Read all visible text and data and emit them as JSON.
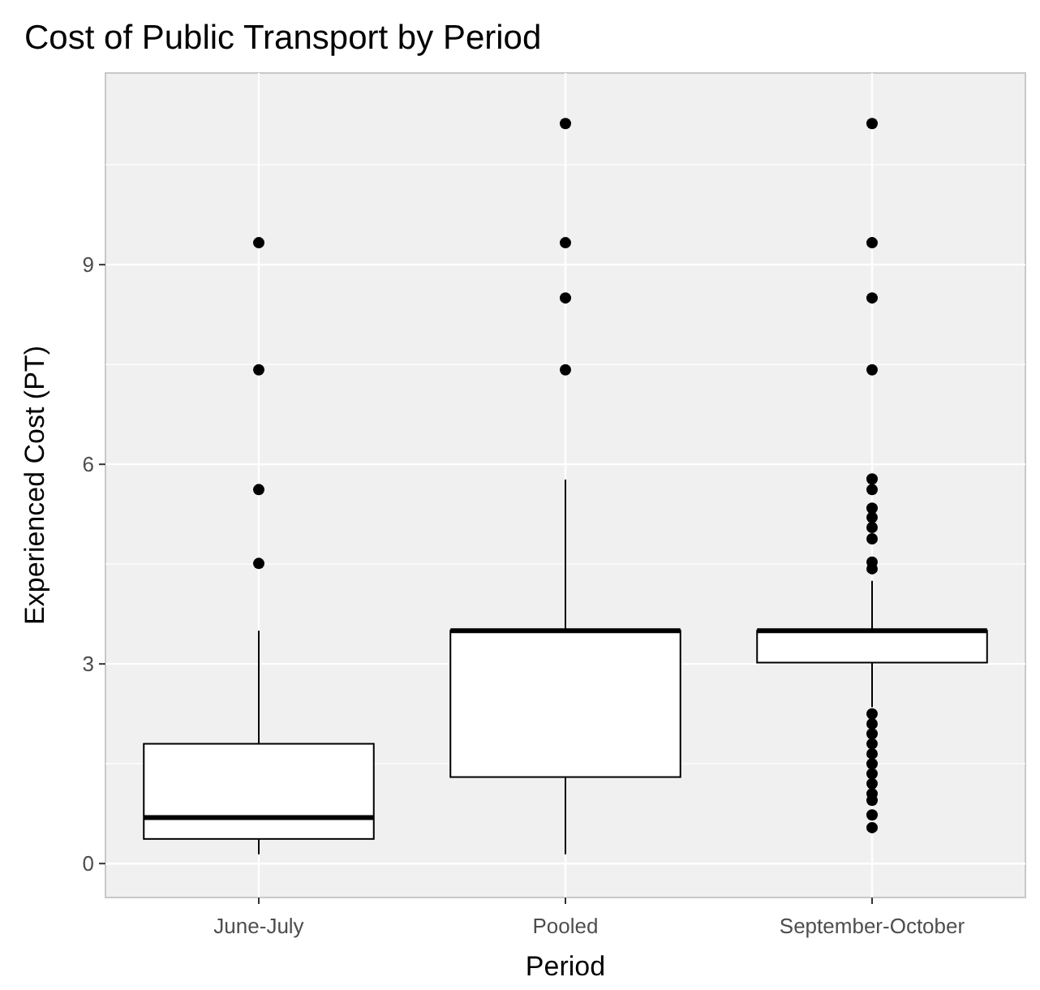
{
  "chart_data": {
    "type": "box",
    "title": "Cost of Public Transport by Period",
    "xlabel": "Period",
    "ylabel": "Experienced Cost (PT)",
    "categories": [
      "June-July",
      "Pooled",
      "September-October"
    ],
    "boxes": [
      {
        "low": 0.14,
        "q1": 0.37,
        "median": 0.69,
        "q3": 1.8,
        "high": 3.5,
        "outliers": [
          4.51,
          5.62,
          7.42,
          9.33
        ]
      },
      {
        "low": 0.14,
        "q1": 1.3,
        "median": 3.5,
        "q3": 3.5,
        "high": 5.77,
        "outliers": [
          7.42,
          8.5,
          9.33,
          11.12
        ]
      },
      {
        "low": 2.35,
        "q1": 3.02,
        "median": 3.5,
        "q3": 3.5,
        "high": 4.25,
        "outliers": [
          0.54,
          0.73,
          0.95,
          1.05,
          1.2,
          1.35,
          1.5,
          1.65,
          1.8,
          1.95,
          2.1,
          2.25,
          4.43,
          4.53,
          4.88,
          5.05,
          5.2,
          5.34,
          5.62,
          5.78,
          7.42,
          8.5,
          9.33,
          11.12
        ]
      }
    ],
    "ylim": [
      -0.51,
      11.88
    ],
    "yticks": [
      0,
      3,
      6,
      9
    ],
    "grid": true
  }
}
